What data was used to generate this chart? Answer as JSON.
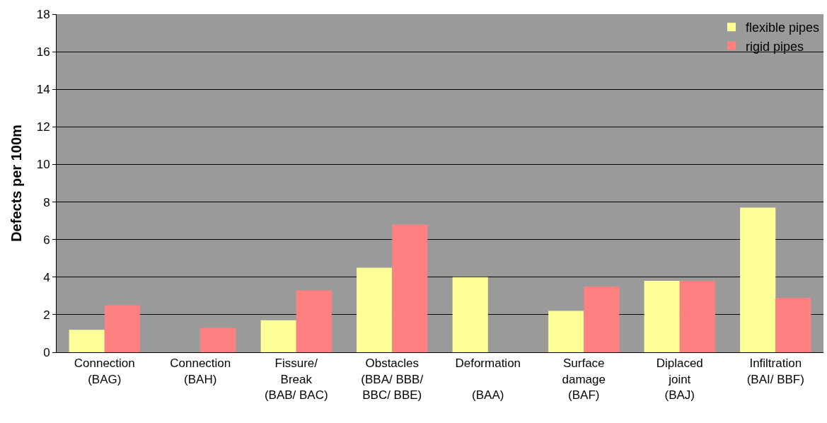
{
  "chart_data": {
    "type": "bar",
    "ylabel": "Defects per 100m",
    "categories": [
      "Connection\n(BAG)",
      "Connection\n(BAH)",
      "Fissure/\nBreak\n(BAB/ BAC)",
      "Obstacles\n(BBA/ BBB/\nBBC/ BBE)",
      "Deformation\n\n(BAA)",
      "Surface\ndamage\n(BAF)",
      "Diplaced\njoint\n(BAJ)",
      "Infiltration\n(BAI/ BBF)"
    ],
    "series": [
      {
        "name": "flexible pipes",
        "color": "#ffff99",
        "values": [
          1.2,
          null,
          1.7,
          4.5,
          4.0,
          2.2,
          3.8,
          7.7
        ]
      },
      {
        "name": "rigid pipes",
        "color": "#ff8080",
        "values": [
          2.5,
          1.3,
          3.3,
          6.8,
          null,
          3.5,
          3.8,
          2.9
        ]
      }
    ],
    "ylim": [
      0,
      18
    ],
    "yticks": [
      0,
      2,
      4,
      6,
      8,
      10,
      12,
      14,
      16,
      18
    ],
    "grid": "y",
    "legend": "top right"
  }
}
